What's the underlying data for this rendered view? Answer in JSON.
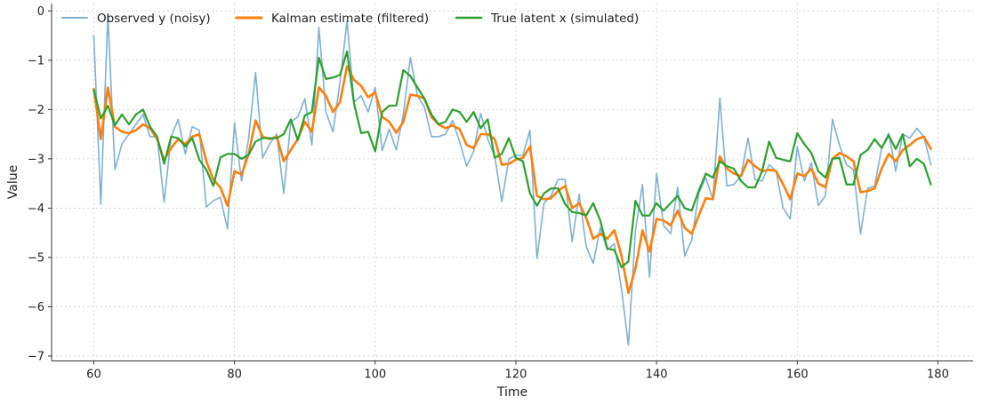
{
  "chart_data": {
    "type": "line",
    "title": "",
    "xlabel": "Time",
    "ylabel": "Value",
    "xlim": [
      54,
      185
    ],
    "ylim": [
      -7.1,
      0.15
    ],
    "xticks": [
      60,
      80,
      100,
      120,
      140,
      160,
      180
    ],
    "yticks": [
      0,
      -1,
      -2,
      -3,
      -4,
      -5,
      -6,
      -7
    ],
    "ytick_labels": [
      "0",
      "−1",
      "−2",
      "−3",
      "−4",
      "−5",
      "−6",
      "−7"
    ],
    "grid": true,
    "legend_position": "top-left",
    "x": [
      60,
      61,
      62,
      63,
      64,
      65,
      66,
      67,
      68,
      69,
      70,
      71,
      72,
      73,
      74,
      75,
      76,
      77,
      78,
      79,
      80,
      81,
      82,
      83,
      84,
      85,
      86,
      87,
      88,
      89,
      90,
      91,
      92,
      93,
      94,
      95,
      96,
      97,
      98,
      99,
      100,
      101,
      102,
      103,
      104,
      105,
      106,
      107,
      108,
      109,
      110,
      111,
      112,
      113,
      114,
      115,
      116,
      117,
      118,
      119,
      120,
      121,
      122,
      123,
      124,
      125,
      126,
      127,
      128,
      129,
      130,
      131,
      132,
      133,
      134,
      135,
      136,
      137,
      138,
      139,
      140,
      141,
      142,
      143,
      144,
      145,
      146,
      147,
      148,
      149,
      150,
      151,
      152,
      153,
      154,
      155,
      156,
      157,
      158,
      159,
      160,
      161,
      162,
      163,
      164,
      165,
      166,
      167,
      168,
      169,
      170,
      171,
      172,
      173,
      174,
      175,
      176,
      177,
      178,
      179
    ],
    "series": [
      {
        "name": "Observed y (noisy)",
        "color": "#7fb0d3",
        "width": 1.6,
        "values": [
          -0.5,
          -3.92,
          -0.08,
          -3.22,
          -2.7,
          -2.5,
          -2.3,
          -2.1,
          -2.55,
          -2.55,
          -3.88,
          -2.55,
          -2.2,
          -2.9,
          -2.35,
          -2.42,
          -3.98,
          -3.85,
          -3.78,
          -4.42,
          -2.27,
          -3.45,
          -2.6,
          -1.25,
          -2.98,
          -2.7,
          -2.5,
          -3.7,
          -2.25,
          -2.15,
          -1.78,
          -2.72,
          -0.33,
          -2.05,
          -2.45,
          -1.45,
          -0.2,
          -1.85,
          -1.72,
          -2.05,
          -1.55,
          -2.83,
          -2.4,
          -2.82,
          -2.1,
          -0.95,
          -1.72,
          -1.95,
          -2.55,
          -2.55,
          -2.5,
          -2.22,
          -2.65,
          -3.15,
          -2.85,
          -2.08,
          -2.6,
          -2.95,
          -3.87,
          -3.0,
          -2.93,
          -2.93,
          -2.42,
          -5.02,
          -3.9,
          -3.75,
          -3.42,
          -3.42,
          -4.68,
          -3.72,
          -4.78,
          -5.12,
          -4.4,
          -4.85,
          -4.72,
          -5.62,
          -6.78,
          -4.45,
          -3.52,
          -5.4,
          -3.3,
          -4.35,
          -4.52,
          -3.58,
          -4.97,
          -4.65,
          -3.7,
          -3.38,
          -3.82,
          -1.77,
          -3.55,
          -3.52,
          -3.35,
          -2.58,
          -3.42,
          -3.45,
          -3.12,
          -3.25,
          -4.0,
          -4.22,
          -2.75,
          -3.45,
          -3.08,
          -3.95,
          -3.75,
          -2.2,
          -2.72,
          -3.12,
          -3.22,
          -4.52,
          -3.6,
          -3.55,
          -2.78,
          -2.48,
          -3.25,
          -2.5,
          -2.58,
          -2.38,
          -2.55,
          -3.12
        ]
      },
      {
        "name": "Kalman estimate (filtered)",
        "color": "#ff7f0e",
        "width": 2.6,
        "values": [
          -1.58,
          -2.6,
          -1.55,
          -2.35,
          -2.45,
          -2.48,
          -2.42,
          -2.3,
          -2.38,
          -2.6,
          -3.02,
          -2.78,
          -2.6,
          -2.7,
          -2.55,
          -2.5,
          -3.05,
          -3.42,
          -3.58,
          -3.95,
          -3.25,
          -3.32,
          -2.9,
          -2.22,
          -2.55,
          -2.6,
          -2.55,
          -3.05,
          -2.82,
          -2.6,
          -2.25,
          -2.45,
          -1.55,
          -1.72,
          -2.05,
          -1.85,
          -1.12,
          -1.4,
          -1.52,
          -1.75,
          -1.65,
          -2.15,
          -2.25,
          -2.47,
          -2.25,
          -1.7,
          -1.72,
          -1.78,
          -2.15,
          -2.3,
          -2.38,
          -2.32,
          -2.4,
          -2.72,
          -2.78,
          -2.5,
          -2.5,
          -2.6,
          -3.12,
          -3.1,
          -3.02,
          -2.98,
          -2.75,
          -3.75,
          -3.82,
          -3.8,
          -3.65,
          -3.55,
          -4.0,
          -3.9,
          -4.2,
          -4.62,
          -4.52,
          -4.62,
          -4.45,
          -4.95,
          -5.72,
          -5.22,
          -4.45,
          -4.88,
          -4.22,
          -4.25,
          -4.35,
          -4.05,
          -4.4,
          -4.52,
          -4.15,
          -3.8,
          -3.82,
          -2.95,
          -3.2,
          -3.3,
          -3.35,
          -3.02,
          -3.15,
          -3.25,
          -3.22,
          -3.25,
          -3.52,
          -3.82,
          -3.3,
          -3.35,
          -3.2,
          -3.5,
          -3.58,
          -3.0,
          -2.88,
          -2.95,
          -3.05,
          -3.68,
          -3.65,
          -3.6,
          -3.2,
          -2.9,
          -3.05,
          -2.82,
          -2.72,
          -2.6,
          -2.55,
          -2.8
        ]
      },
      {
        "name": "True latent x (simulated)",
        "color": "#2ca02c",
        "width": 2.2,
        "values": [
          -1.6,
          -2.18,
          -1.92,
          -2.32,
          -2.1,
          -2.3,
          -2.1,
          -2.0,
          -2.35,
          -2.55,
          -3.1,
          -2.55,
          -2.58,
          -2.75,
          -2.58,
          -3.02,
          -3.22,
          -3.55,
          -2.97,
          -2.9,
          -2.9,
          -3.0,
          -2.92,
          -2.65,
          -2.58,
          -2.58,
          -2.58,
          -2.5,
          -2.2,
          -2.62,
          -2.12,
          -2.05,
          -0.95,
          -1.38,
          -1.35,
          -1.3,
          -0.82,
          -1.88,
          -2.48,
          -2.45,
          -2.85,
          -2.05,
          -1.92,
          -1.92,
          -1.2,
          -1.32,
          -1.55,
          -1.78,
          -2.1,
          -2.3,
          -2.25,
          -2.0,
          -2.05,
          -2.25,
          -2.05,
          -2.38,
          -2.2,
          -2.98,
          -2.9,
          -2.58,
          -2.98,
          -3.05,
          -3.7,
          -3.95,
          -3.7,
          -3.6,
          -3.6,
          -3.92,
          -4.08,
          -4.1,
          -4.15,
          -3.9,
          -4.25,
          -4.82,
          -4.85,
          -5.2,
          -5.08,
          -3.85,
          -4.15,
          -4.15,
          -3.9,
          -4.05,
          -3.9,
          -3.75,
          -4.0,
          -4.05,
          -3.65,
          -3.3,
          -3.38,
          -3.05,
          -3.15,
          -3.2,
          -3.45,
          -3.58,
          -3.58,
          -3.25,
          -2.65,
          -2.98,
          -3.02,
          -3.05,
          -2.48,
          -2.7,
          -2.88,
          -3.25,
          -3.38,
          -3.0,
          -2.98,
          -3.52,
          -3.52,
          -2.92,
          -2.82,
          -2.6,
          -2.78,
          -2.52,
          -2.8,
          -2.5,
          -3.15,
          -3.0,
          -3.1,
          -3.52
        ]
      }
    ]
  }
}
